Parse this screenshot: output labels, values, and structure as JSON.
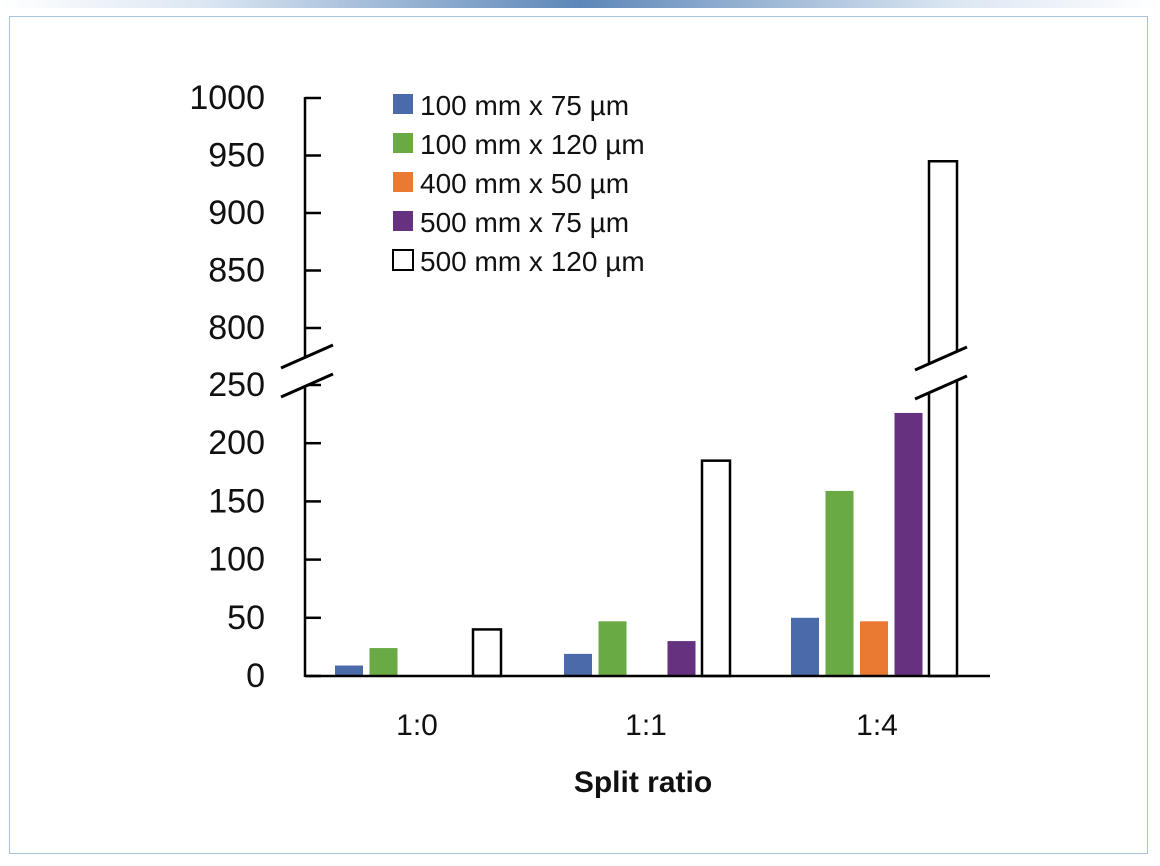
{
  "chart_data": {
    "type": "bar",
    "title": "",
    "xlabel": "Split ratio",
    "ylabel": "",
    "categories": [
      "1:0",
      "1:1",
      "1:4"
    ],
    "axis_break": {
      "lower_range": [
        0,
        250
      ],
      "upper_range": [
        800,
        1000
      ]
    },
    "lower_ticks": [
      "0",
      "50",
      "100",
      "150",
      "200",
      "250"
    ],
    "upper_ticks": [
      "800",
      "850",
      "900",
      "950",
      "1000"
    ],
    "legend_position": "top-left",
    "series": [
      {
        "name": "100 mm x 75 µm",
        "color": "#4a6aaa",
        "values": [
          9,
          19,
          50
        ]
      },
      {
        "name": "100 mm x 120 µm",
        "color": "#6aaa44",
        "values": [
          24,
          47,
          159
        ]
      },
      {
        "name": "400 mm x 50 µm",
        "color": "#ea7a32",
        "values": [
          0,
          0,
          47
        ]
      },
      {
        "name": "500 mm x 75 µm",
        "color": "#663280",
        "values": [
          0,
          30,
          226
        ]
      },
      {
        "name": "500 mm x 120 µm",
        "color": "#ffffff",
        "values": [
          40,
          185,
          945
        ]
      }
    ]
  }
}
